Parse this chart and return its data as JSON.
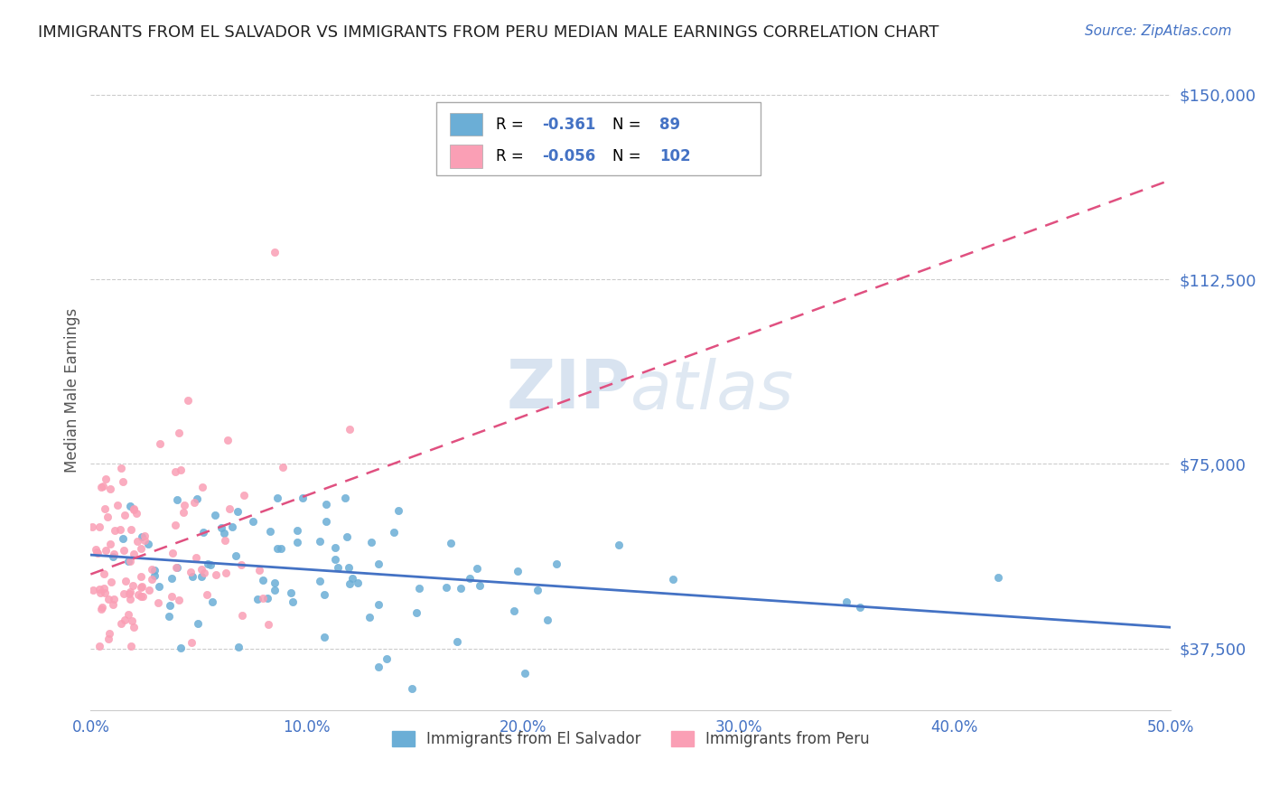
{
  "title": "IMMIGRANTS FROM EL SALVADOR VS IMMIGRANTS FROM PERU MEDIAN MALE EARNINGS CORRELATION CHART",
  "source": "Source: ZipAtlas.com",
  "watermark_zip": "ZIP",
  "watermark_atlas": "atlas",
  "ylabel": "Median Male Earnings",
  "xmin": 0.0,
  "xmax": 0.5,
  "ymin": 25000,
  "ymax": 155000,
  "yticks": [
    37500,
    75000,
    112500,
    150000
  ],
  "ytick_labels": [
    "$37,500",
    "$75,000",
    "$112,500",
    "$150,000"
  ],
  "xticks": [
    0.0,
    0.1,
    0.2,
    0.3,
    0.4,
    0.5
  ],
  "xtick_labels": [
    "0.0%",
    "10.0%",
    "20.0%",
    "30.0%",
    "40.0%",
    "50.0%"
  ],
  "color_salvador": "#6baed6",
  "color_peru": "#fa9fb5",
  "color_blue": "#4472c4",
  "color_pink": "#e05080",
  "R_salvador": "-0.361",
  "N_salvador": "89",
  "R_peru": "-0.056",
  "N_peru": "102",
  "legend_label_salvador": "Immigrants from El Salvador",
  "legend_label_peru": "Immigrants from Peru",
  "background_color": "#ffffff",
  "grid_color": "#cccccc",
  "axis_color": "#4472c4",
  "title_color": "#222222",
  "source_color": "#4472c4"
}
